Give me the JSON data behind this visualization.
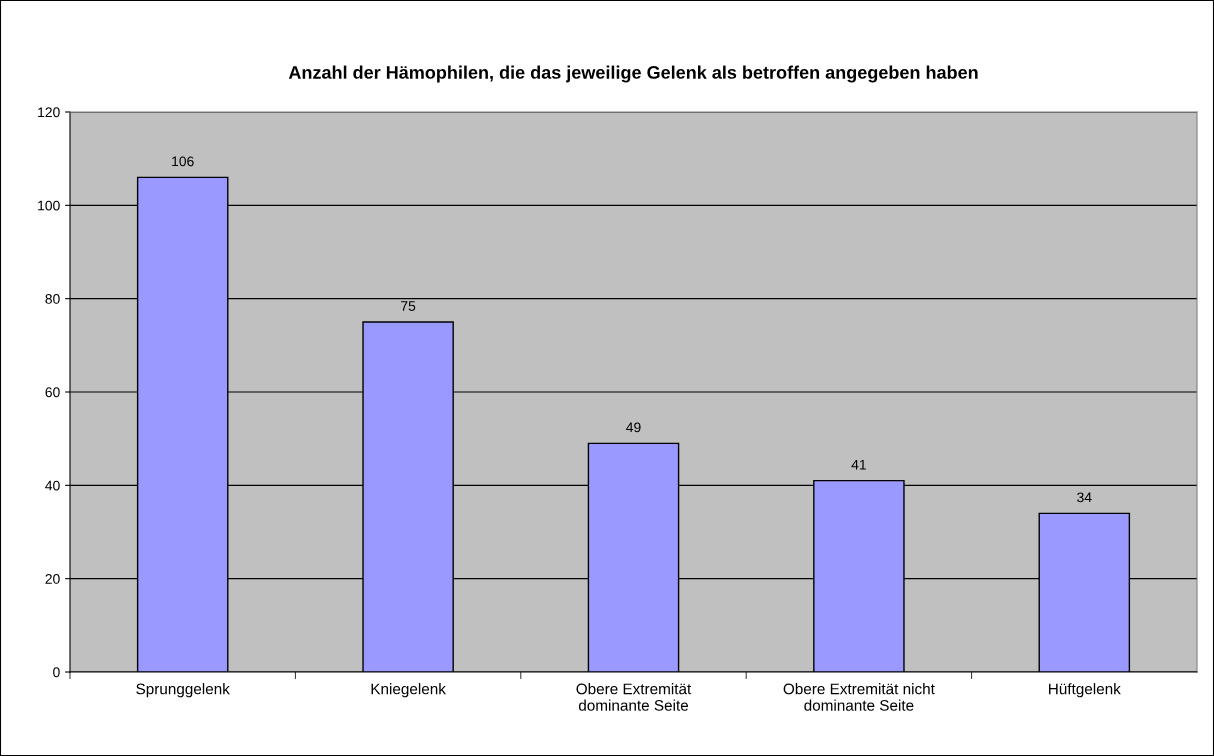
{
  "chart_data": {
    "type": "bar",
    "title": "Anzahl der Hämophilen, die das jeweilige Gelenk als betroffen angegeben haben",
    "categories": [
      "Sprunggelenk",
      "Kniegelenk",
      "Obere Extremität\ndominante Seite",
      "Obere Extremität nicht\ndominante Seite",
      "Hüftgelenk"
    ],
    "values": [
      106,
      75,
      49,
      41,
      34
    ],
    "color": "#9999ff",
    "ylim": [
      0,
      120
    ],
    "yticks": [
      0,
      20,
      40,
      60,
      80,
      100,
      120
    ],
    "grid": "y",
    "data_labels": true,
    "legend": false
  }
}
